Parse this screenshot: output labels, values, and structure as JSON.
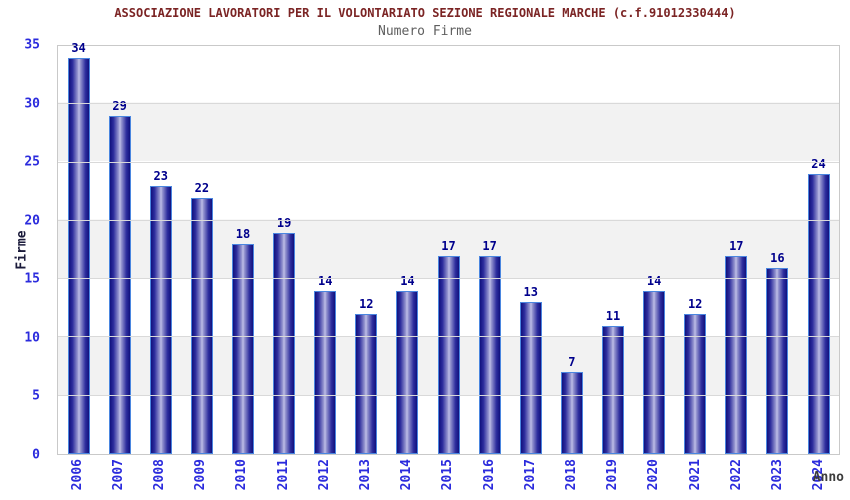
{
  "header": {
    "title": "ASSOCIAZIONE LAVORATORI PER IL VOLONTARIATO SEZIONE REGIONALE MARCHE (c.f.91012330444)",
    "subtitle": "Numero Firme"
  },
  "chart_data": {
    "type": "bar",
    "title": "ASSOCIAZIONE LAVORATORI PER IL VOLONTARIATO SEZIONE REGIONALE MARCHE (c.f.91012330444)",
    "subtitle": "Numero Firme",
    "categories": [
      "2006",
      "2007",
      "2008",
      "2009",
      "2010",
      "2011",
      "2012",
      "2013",
      "2014",
      "2015",
      "2016",
      "2017",
      "2018",
      "2019",
      "2020",
      "2021",
      "2022",
      "2023",
      "2024"
    ],
    "values": [
      34,
      29,
      23,
      22,
      18,
      19,
      14,
      12,
      14,
      17,
      17,
      13,
      7,
      11,
      14,
      12,
      17,
      16,
      24
    ],
    "xlabel": "Anno",
    "ylabel": "Firme",
    "ylim": [
      0,
      35
    ],
    "ytick_step": 5,
    "yticks": [
      0,
      5,
      10,
      15,
      20,
      25,
      30,
      35
    ],
    "grid": true,
    "legend_position": "none",
    "band_fill": "alternating-horizontal",
    "colors": {
      "title": "#7b2424",
      "subtitle": "#5f5f5f",
      "bar_dark": "#11117e",
      "bar_highlight": "#c0c0e8",
      "bar_border": "#4a86e0",
      "value_label": "#00008c",
      "tick_label": "#2b2bdd",
      "gridline": "#d9d9d9",
      "band": "#f2f2f2",
      "plot_border": "#c9c9c9"
    }
  }
}
